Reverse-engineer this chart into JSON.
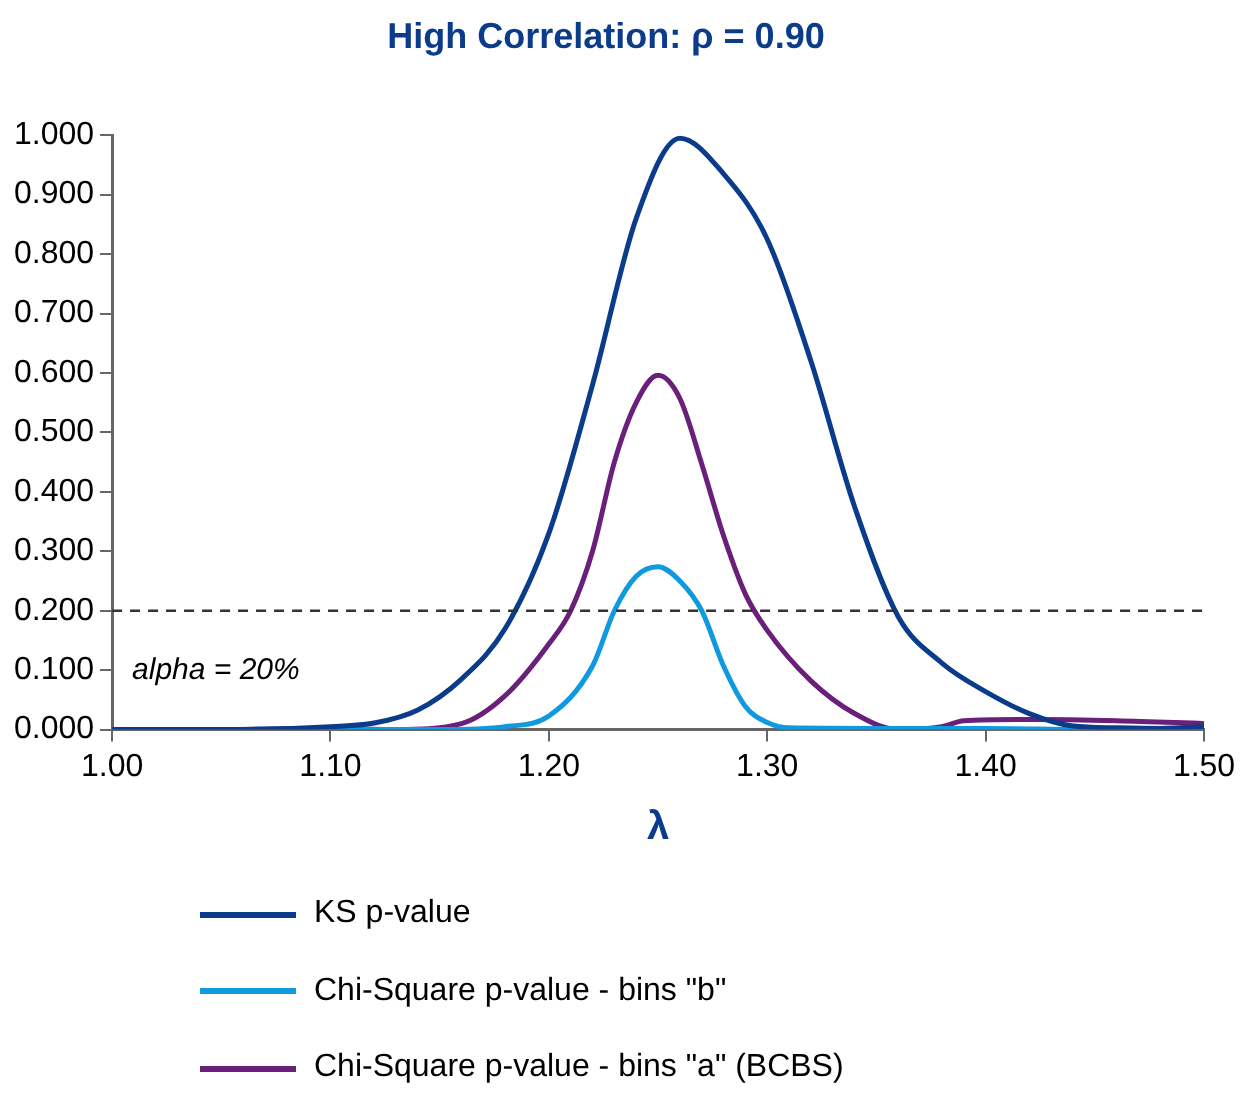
{
  "chart_data": {
    "type": "line",
    "title": "High Correlation: ρ = 0.90",
    "xlabel": "λ",
    "xlim": [
      1.0,
      1.5
    ],
    "xticks": [
      {
        "value": 1.0,
        "label": "1.00"
      },
      {
        "value": 1.1,
        "label": "1.10"
      },
      {
        "value": 1.2,
        "label": "1.20"
      },
      {
        "value": 1.3,
        "label": "1.30"
      },
      {
        "value": 1.4,
        "label": "1.40"
      },
      {
        "value": 1.5,
        "label": "1.50"
      }
    ],
    "ylim": [
      0,
      1.0
    ],
    "yticks": [
      {
        "value": 0,
        "label": "0.000"
      },
      {
        "value": 0.1,
        "label": "0.100"
      },
      {
        "value": 0.2,
        "label": "0.200"
      },
      {
        "value": 0.3,
        "label": "0.300"
      },
      {
        "value": 0.4,
        "label": "0.400"
      },
      {
        "value": 0.5,
        "label": "0.500"
      },
      {
        "value": 0.6,
        "label": "0.600"
      },
      {
        "value": 0.7,
        "label": "0.700"
      },
      {
        "value": 0.8,
        "label": "0.800"
      },
      {
        "value": 0.9,
        "label": "0.900"
      },
      {
        "value": 1.0,
        "label": "1.000"
      }
    ],
    "series": [
      {
        "name": "KS p-value",
        "color": "#0b3c8c",
        "x": [
          1.0,
          1.05,
          1.1,
          1.12,
          1.14,
          1.16,
          1.18,
          1.2,
          1.22,
          1.24,
          1.26,
          1.28,
          1.3,
          1.32,
          1.34,
          1.36,
          1.38,
          1.4,
          1.42,
          1.44,
          1.46,
          1.48,
          1.5
        ],
        "values": [
          0.0,
          0.0,
          0.005,
          0.011,
          0.033,
          0.085,
          0.17,
          0.33,
          0.58,
          0.86,
          0.995,
          0.935,
          0.825,
          0.62,
          0.375,
          0.19,
          0.112,
          0.064,
          0.027,
          0.006,
          0.003,
          0.002,
          0.005
        ]
      },
      {
        "name": "Chi-Square p-value - bins \"b\"",
        "color": "#0f9ae0",
        "x": [
          1.0,
          1.05,
          1.1,
          1.15,
          1.18,
          1.2,
          1.22,
          1.23,
          1.24,
          1.25,
          1.26,
          1.27,
          1.28,
          1.29,
          1.3,
          1.31,
          1.35,
          1.4,
          1.45,
          1.5
        ],
        "values": [
          0.0,
          0.0,
          0.0,
          0.0,
          0.005,
          0.023,
          0.107,
          0.2,
          0.258,
          0.274,
          0.25,
          0.2,
          0.107,
          0.039,
          0.012,
          0.003,
          0.002,
          0.002,
          0.0,
          0.002
        ]
      },
      {
        "name": "Chi-Square p-value - bins \"a\" (BCBS)",
        "color": "#6a1f7a",
        "x": [
          1.0,
          1.05,
          1.1,
          1.13,
          1.16,
          1.18,
          1.2,
          1.21,
          1.22,
          1.23,
          1.24,
          1.25,
          1.26,
          1.27,
          1.28,
          1.29,
          1.3,
          1.32,
          1.34,
          1.36,
          1.38,
          1.39,
          1.42,
          1.46,
          1.5
        ],
        "values": [
          0.0,
          0.0,
          0.002,
          0.0,
          0.01,
          0.057,
          0.144,
          0.2,
          0.3,
          0.45,
          0.55,
          0.596,
          0.557,
          0.447,
          0.326,
          0.228,
          0.167,
          0.082,
          0.027,
          0.0,
          0.005,
          0.015,
          0.017,
          0.015,
          0.01
        ]
      }
    ],
    "ref_lines": [
      {
        "axis": "y",
        "value": 0.2,
        "label": "alpha = 20%",
        "color": "#333333",
        "line_style": "dashed"
      }
    ],
    "legend": "bottom",
    "grid": false,
    "marker": "none",
    "line_style": "solid"
  }
}
